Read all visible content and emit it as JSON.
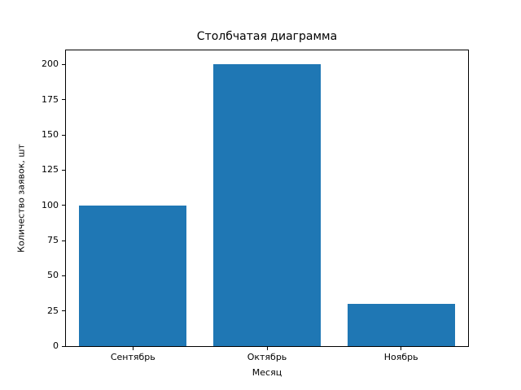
{
  "chart_data": {
    "type": "bar",
    "title": "Столбчатая диаграмма",
    "xlabel": "Месяц",
    "ylabel": "Количество заявок, шт",
    "categories": [
      "Сентябрь",
      "Октябрь",
      "Ноябрь"
    ],
    "values": [
      100,
      200,
      30
    ],
    "ylim": [
      0,
      210
    ],
    "yticks": [
      0,
      25,
      50,
      75,
      100,
      125,
      150,
      175,
      200
    ],
    "bar_color": "#1f77b4",
    "grid": false,
    "legend_position": "none",
    "bar_width_fraction": 0.8
  }
}
